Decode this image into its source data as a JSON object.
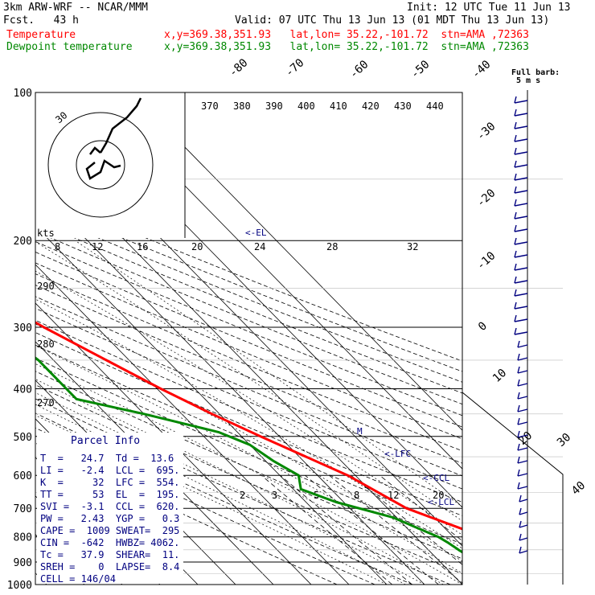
{
  "header": {
    "model": "3km ARW-WRF -- NCAR/MMM",
    "init": "Init: 12 UTC Tue 11 Jun 13",
    "fcst": "Fcst.   43 h",
    "valid": "Valid: 07 UTC Thu 13 Jun 13 (01 MDT Thu 13 Jun 13)",
    "temp_label": "Temperature",
    "temp_info": "x,y=369.38,351.93   lat,lon= 35.22,-101.72  stn=AMA ,72363",
    "dew_label": "Dewpoint temperature",
    "dew_info": "x,y=369.38,351.93   lat,lon= 35.22,-101.72  stn=AMA ,72363"
  },
  "colors": {
    "temperature": "#ff0000",
    "dewpoint": "#008800",
    "info": "#000080",
    "wind": "#000080",
    "grid": "#000000"
  },
  "barb_legend": {
    "title": "Full barb:",
    "value": "5 m s"
  },
  "chart_data": {
    "type": "line",
    "title": "",
    "ylabel": "",
    "y_axis": "pressure (log)",
    "ylim": [
      1000,
      100
    ],
    "isobars": [
      "100",
      "200",
      "300",
      "400",
      "500",
      "600",
      "700",
      "800",
      "900",
      "1000"
    ],
    "isotherm_labels": [
      "-80",
      "-70",
      "-60",
      "-50",
      "-40",
      "-30",
      "-20",
      "-10",
      "0",
      "10",
      "20",
      "30",
      "40"
    ],
    "theta_labels": [
      "290",
      "280",
      "270"
    ],
    "theta_top_labels": [
      "370",
      "380",
      "390",
      "400",
      "410",
      "420",
      "430",
      "440"
    ],
    "mixing_ratio_labels": [
      "2",
      "3",
      "5",
      "8",
      "12",
      "20"
    ],
    "hodograph": {
      "speed_unit": "kts",
      "rings": [
        "8",
        "12",
        "16",
        "20",
        "24",
        "28",
        "32"
      ],
      "ring_label": "30"
    },
    "levels": {
      "EL": "<-EL",
      "LFC": "<-LFC",
      "CCL": "<-CCL",
      "LCL": "<-LCL",
      "M": "M"
    },
    "series": [
      {
        "name": "Temperature",
        "p": [
          900,
          880,
          855,
          800,
          700,
          600,
          500,
          450,
          400,
          350,
          300,
          250,
          200,
          175,
          150,
          125,
          110,
          100
        ],
        "t": [
          28,
          32,
          32,
          28,
          15,
          8,
          -5,
          -12,
          -19,
          -26,
          -34,
          -42,
          -50,
          -56,
          -60,
          -64,
          -67,
          -68
        ]
      },
      {
        "name": "Dewpoint temperature",
        "p": [
          900,
          850,
          820,
          800,
          730,
          680,
          640,
          600,
          560,
          520,
          490,
          450,
          420,
          400,
          380,
          350,
          300,
          250,
          200,
          150,
          125,
          100
        ],
        "t": [
          20,
          18,
          17,
          16,
          9,
          -2,
          -8,
          -5,
          -8,
          -10,
          -15,
          -30,
          -44,
          -44,
          -44,
          -44,
          -47,
          -58,
          -66,
          -74,
          -80,
          -86
        ]
      }
    ]
  },
  "parcel": {
    "title": "Parcel Info",
    "rows": [
      "T  =   24.7  Td =  13.6",
      "LI =   -2.4  LCL =  695.",
      "K  =     32  LFC =  554.",
      "TT =     53  EL  =  195.",
      "SVI =  -3.1  CCL =  620.",
      "PW =   2.43  YGP =   0.3",
      "CAPE =  1009 SWEAT=  295",
      "CIN =  -642  HWBZ= 4062.",
      "Tc =   37.9  SHEAR=  11.",
      "SREH =    0  LAPSE=  8.4",
      "CELL = 146/04"
    ]
  }
}
